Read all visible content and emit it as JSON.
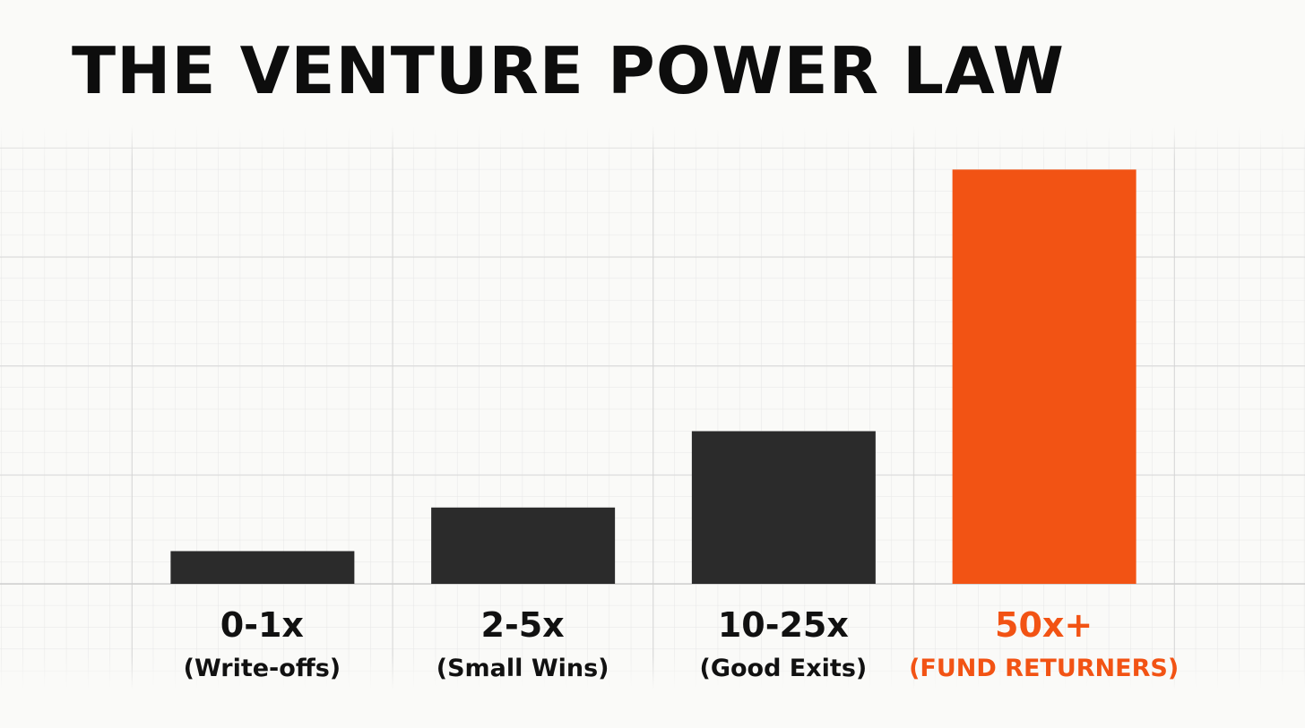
{
  "chart_data": {
    "type": "bar",
    "title": "THE VENTURE POWER LAW",
    "categories": [
      "0-1x",
      "2-5x",
      "10-25x",
      "50x+"
    ],
    "category_notes": [
      "(Write-offs)",
      "(Small Wins)",
      "(Good Exits)",
      "(FUND RETURNERS)"
    ],
    "values": [
      1.5,
      3.5,
      7,
      19
    ],
    "colors": [
      "#2b2b2b",
      "#2b2b2b",
      "#2b2b2b",
      "#f25314"
    ],
    "label_colors": [
      "#111111",
      "#111111",
      "#111111",
      "#f25314"
    ],
    "ylim": [
      0,
      20
    ],
    "grid": true
  }
}
